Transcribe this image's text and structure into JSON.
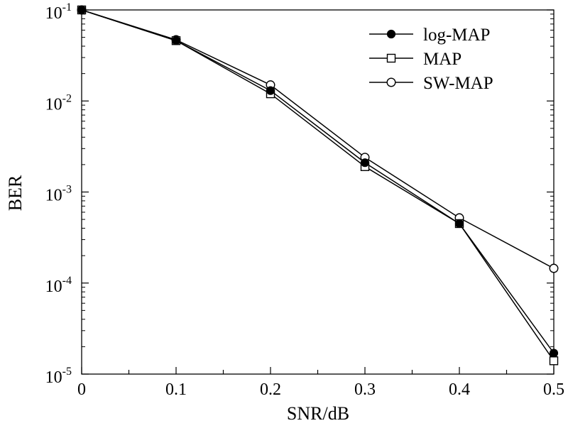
{
  "chart_data": {
    "type": "line",
    "title": "",
    "xlabel": "SNR/dB",
    "ylabel": "BER",
    "x": [
      0,
      0.1,
      0.2,
      0.3,
      0.4,
      0.5
    ],
    "x_tick_labels": [
      "0",
      "0.1",
      "0.2",
      "0.3",
      "0.4",
      "0.5"
    ],
    "xlim": [
      0,
      0.5
    ],
    "y_scale": "log",
    "ylim": [
      1e-05,
      0.1
    ],
    "y_ticks": [
      {
        "base": "10",
        "exp": "-1",
        "value": 0.1
      },
      {
        "base": "10",
        "exp": "-2",
        "value": 0.01
      },
      {
        "base": "10",
        "exp": "-3",
        "value": 0.001
      },
      {
        "base": "10",
        "exp": "-4",
        "value": 0.0001
      },
      {
        "base": "10",
        "exp": "-5",
        "value": 1e-05
      }
    ],
    "grid": false,
    "legend_position": "top-right",
    "series": [
      {
        "name": "log-MAP",
        "marker": "filled-circle",
        "values": [
          0.1,
          0.046,
          0.013,
          0.0021,
          0.00045,
          1.7e-05
        ]
      },
      {
        "name": "MAP",
        "marker": "open-square",
        "values": [
          0.1,
          0.046,
          0.012,
          0.0019,
          0.00045,
          1.4e-05
        ]
      },
      {
        "name": "SW-MAP",
        "marker": "open-circle",
        "values": [
          0.1,
          0.047,
          0.015,
          0.0024,
          0.00052,
          0.000145
        ]
      }
    ]
  }
}
